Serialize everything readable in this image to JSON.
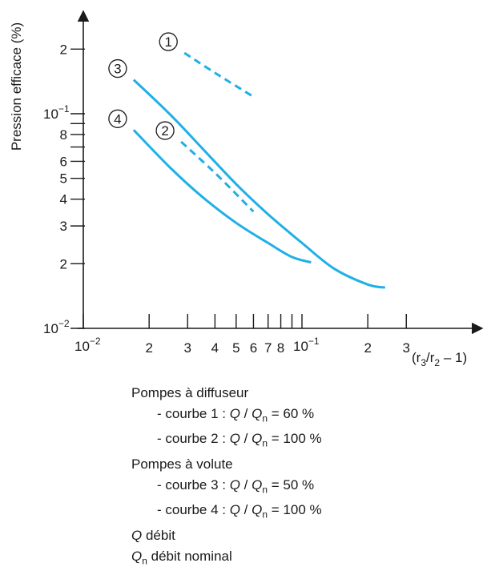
{
  "chart_data": {
    "type": "line",
    "ylabel": "Pression efficace (%)",
    "xlabel_parts": [
      "(r",
      "3",
      "/r",
      "2",
      " – 1)"
    ],
    "x_scale": "log",
    "y_scale": "log",
    "xlim": [
      0.01,
      0.4
    ],
    "ylim": [
      0.01,
      0.3
    ],
    "x_ticks": [
      {
        "value": 0.01,
        "base": "10",
        "exp": "−2"
      },
      {
        "value": 0.02,
        "label": "2"
      },
      {
        "value": 0.03,
        "label": "3"
      },
      {
        "value": 0.04,
        "label": "4"
      },
      {
        "value": 0.05,
        "label": "5"
      },
      {
        "value": 0.06,
        "label": "6"
      },
      {
        "value": 0.07,
        "label": "7"
      },
      {
        "value": 0.08,
        "label": "8"
      },
      {
        "value": 0.09,
        "label": ""
      },
      {
        "value": 0.1,
        "base": "10",
        "exp": "−1"
      },
      {
        "value": 0.2,
        "label": "2"
      },
      {
        "value": 0.3,
        "label": "3"
      }
    ],
    "y_ticks": [
      {
        "value": 0.01,
        "base": "10",
        "exp": "−2"
      },
      {
        "value": 0.02,
        "label": "2"
      },
      {
        "value": 0.03,
        "label": "3"
      },
      {
        "value": 0.04,
        "label": "4"
      },
      {
        "value": 0.05,
        "label": "5"
      },
      {
        "value": 0.06,
        "label": "6"
      },
      {
        "value": 0.07,
        "label": ""
      },
      {
        "value": 0.08,
        "label": "8"
      },
      {
        "value": 0.09,
        "label": ""
      },
      {
        "value": 0.1,
        "base": "10",
        "exp": "−1"
      },
      {
        "value": 0.2,
        "label": "2"
      }
    ],
    "series": [
      {
        "marker": "1",
        "dashed": true,
        "color": "#1fb0e6",
        "points": [
          [
            0.029,
            0.192
          ],
          [
            0.04,
            0.155
          ],
          [
            0.06,
            0.12
          ]
        ]
      },
      {
        "marker": "2",
        "dashed": true,
        "color": "#1fb0e6",
        "points": [
          [
            0.028,
            0.074
          ],
          [
            0.04,
            0.053
          ],
          [
            0.06,
            0.035
          ]
        ]
      },
      {
        "marker": "3",
        "dashed": false,
        "color": "#1fb0e6",
        "points": [
          [
            0.017,
            0.144
          ],
          [
            0.025,
            0.099
          ],
          [
            0.035,
            0.069
          ],
          [
            0.05,
            0.047
          ],
          [
            0.07,
            0.034
          ],
          [
            0.1,
            0.025
          ],
          [
            0.14,
            0.019
          ],
          [
            0.2,
            0.016
          ],
          [
            0.24,
            0.0155
          ]
        ]
      },
      {
        "marker": "4",
        "dashed": false,
        "color": "#1fb0e6",
        "points": [
          [
            0.017,
            0.084
          ],
          [
            0.025,
            0.056
          ],
          [
            0.035,
            0.041
          ],
          [
            0.05,
            0.031
          ],
          [
            0.07,
            0.025
          ],
          [
            0.09,
            0.0215
          ],
          [
            0.11,
            0.0203
          ]
        ]
      }
    ]
  },
  "legend": {
    "diffuseur_heading": "Pompes à diffuseur",
    "volute_heading": "Pompes à volute",
    "curves": [
      {
        "prefix": "- courbe 1 : ",
        "value": " = 60 %"
      },
      {
        "prefix": "- courbe 2 : ",
        "value": " = 100 %"
      },
      {
        "prefix": "- courbe 3 : ",
        "value": " = 50 %"
      },
      {
        "prefix": "- courbe 4 : ",
        "value": " = 100 %"
      }
    ],
    "q_symbol": "Q",
    "ratio_separator": " / ",
    "qn_base": "Q",
    "qn_sub": "n",
    "q_desc": " débit",
    "qn_desc": " débit nominal"
  }
}
